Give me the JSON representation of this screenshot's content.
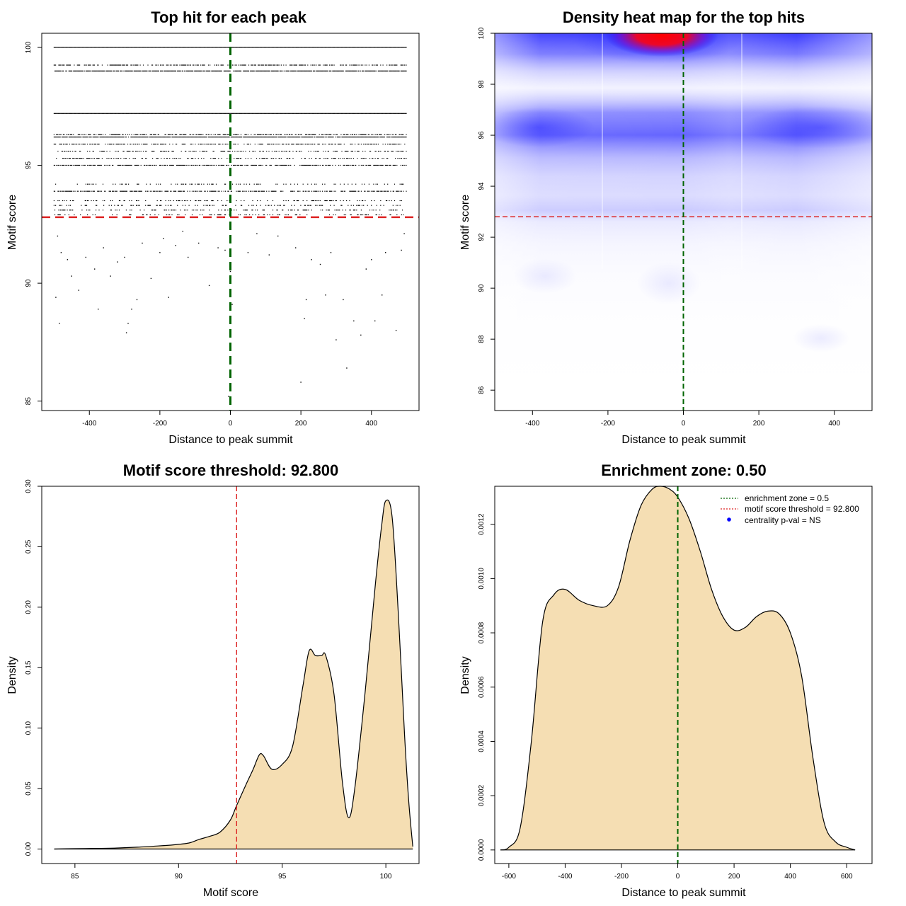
{
  "chart_data": [
    {
      "type": "scatter",
      "title": "Top hit for each peak",
      "xlabel": "Distance to peak summit",
      "ylabel": "Motif score",
      "xlim": [
        -535,
        535
      ],
      "ylim": [
        84.6,
        100.6
      ],
      "xticks": [
        -400,
        -200,
        0,
        200,
        400
      ],
      "yticks": [
        85,
        90,
        95,
        100
      ],
      "score_levels": [
        100,
        99.25,
        99.0,
        97.2,
        96.3,
        96.2,
        95.9,
        95.6,
        95.3,
        95.0,
        94.2,
        93.9,
        93.5,
        93.3,
        93.1,
        92.9
      ],
      "sparse_points": [
        [
          -490,
          92.0
        ],
        [
          -480,
          91.3
        ],
        [
          -462,
          91.0
        ],
        [
          -450,
          90.3
        ],
        [
          -430,
          89.7
        ],
        [
          -410,
          91.1
        ],
        [
          -385,
          90.6
        ],
        [
          -375,
          88.9
        ],
        [
          -360,
          91.5
        ],
        [
          -340,
          90.3
        ],
        [
          -320,
          90.9
        ],
        [
          -300,
          91.1
        ],
        [
          -290,
          88.3
        ],
        [
          -280,
          88.9
        ],
        [
          -265,
          89.3
        ],
        [
          -250,
          91.7
        ],
        [
          -225,
          90.2
        ],
        [
          -200,
          91.3
        ],
        [
          -190,
          91.9
        ],
        [
          -175,
          89.4
        ],
        [
          -155,
          91.6
        ],
        [
          -135,
          92.2
        ],
        [
          -120,
          91.1
        ],
        [
          -90,
          91.7
        ],
        [
          -60,
          89.9
        ],
        [
          -35,
          91.5
        ],
        [
          -15,
          91.4
        ],
        [
          -5,
          85.2
        ],
        [
          0,
          90.5
        ],
        [
          5,
          89.1
        ],
        [
          50,
          91.3
        ],
        [
          75,
          92.1
        ],
        [
          110,
          91.2
        ],
        [
          135,
          92.0
        ],
        [
          185,
          91.5
        ],
        [
          200,
          85.8
        ],
        [
          210,
          88.5
        ],
        [
          215,
          89.3
        ],
        [
          230,
          91.0
        ],
        [
          255,
          90.8
        ],
        [
          270,
          89.5
        ],
        [
          285,
          91.3
        ],
        [
          300,
          87.6
        ],
        [
          320,
          89.3
        ],
        [
          330,
          86.4
        ],
        [
          350,
          88.4
        ],
        [
          370,
          87.8
        ],
        [
          385,
          90.6
        ],
        [
          400,
          91.0
        ],
        [
          410,
          88.4
        ],
        [
          430,
          89.5
        ],
        [
          440,
          91.3
        ],
        [
          470,
          88.0
        ],
        [
          485,
          91.4
        ],
        [
          493,
          92.1
        ],
        [
          -485,
          88.3
        ],
        [
          -495,
          89.4
        ],
        [
          -295,
          87.9
        ]
      ],
      "threshold": 92.8
    },
    {
      "type": "heatmap",
      "title": "Density heat map for the top hits",
      "xlabel": "Distance to peak summit",
      "ylabel": "Motif score",
      "xlim": [
        -500,
        500
      ],
      "ylim": [
        85.2,
        100
      ],
      "xticks": [
        -400,
        -200,
        0,
        200,
        400
      ],
      "yticks": [
        86,
        88,
        90,
        92,
        94,
        96,
        98,
        100
      ],
      "color_scale": [
        "#ffffff",
        "#0000ff",
        "#ff0000"
      ],
      "threshold": 92.8
    },
    {
      "type": "area",
      "title": "Motif score threshold: 92.800",
      "xlabel": "Motif score",
      "ylabel": "Density",
      "xlim": [
        83.4,
        101.6
      ],
      "ylim": [
        -0.012,
        0.3
      ],
      "xticks": [
        85,
        90,
        95,
        100
      ],
      "yticks": [
        0.0,
        0.05,
        0.1,
        0.15,
        0.2,
        0.25,
        0.3
      ],
      "ytick_labels": [
        "0.00",
        "0.05",
        "0.10",
        "0.15",
        "0.20",
        "0.25",
        "0.30"
      ],
      "x": [
        84.0,
        85.0,
        86.0,
        87.0,
        88.0,
        89.0,
        89.8,
        90.5,
        91.0,
        91.5,
        92.0,
        92.5,
        92.8,
        93.3,
        93.6,
        93.9,
        94.1,
        94.5,
        95.0,
        95.5,
        96.0,
        96.3,
        96.6,
        96.9,
        97.1,
        97.5,
        97.9,
        98.2,
        98.5,
        99.0,
        99.5,
        99.8,
        100.0,
        100.3,
        100.6,
        100.9,
        101.1,
        101.3
      ],
      "y": [
        0.0,
        0.0003,
        0.0005,
        0.0008,
        0.0015,
        0.0025,
        0.0035,
        0.005,
        0.008,
        0.0105,
        0.014,
        0.024,
        0.036,
        0.055,
        0.066,
        0.078,
        0.077,
        0.066,
        0.07,
        0.085,
        0.135,
        0.164,
        0.16,
        0.16,
        0.16,
        0.128,
        0.056,
        0.026,
        0.05,
        0.13,
        0.22,
        0.268,
        0.288,
        0.275,
        0.195,
        0.095,
        0.04,
        0.002
      ],
      "threshold": 92.8
    },
    {
      "type": "area",
      "title": "Enrichment zone: 0.50",
      "xlabel": "Distance to peak summit",
      "ylabel": "Density",
      "xlim": [
        -650,
        690
      ],
      "ylim": [
        -5e-05,
        0.00134
      ],
      "xticks": [
        -600,
        -400,
        -200,
        0,
        200,
        400,
        600
      ],
      "yticks": [
        0.0,
        0.0002,
        0.0004,
        0.0006,
        0.0008,
        0.001,
        0.0012
      ],
      "ytick_labels": [
        "0.0000",
        "0.0002",
        "0.0004",
        "0.0006",
        "0.0008",
        "0.0010",
        "0.0012"
      ],
      "x": [
        -630,
        -600,
        -560,
        -520,
        -480,
        -440,
        -400,
        -350,
        -300,
        -250,
        -210,
        -170,
        -130,
        -90,
        -60,
        -30,
        0,
        40,
        80,
        120,
        160,
        200,
        240,
        280,
        320,
        360,
        400,
        440,
        480,
        520,
        560,
        600,
        630
      ],
      "y": [
        0.0,
        1e-05,
        8e-05,
        0.0004,
        0.00084,
        0.00094,
        0.00096,
        0.00092,
        0.0009,
        0.0009,
        0.00097,
        0.00114,
        0.00127,
        0.00133,
        0.00134,
        0.00133,
        0.0013,
        0.00122,
        0.0011,
        0.00096,
        0.00086,
        0.00081,
        0.00082,
        0.00086,
        0.00088,
        0.00087,
        0.0008,
        0.00064,
        0.00034,
        0.0001,
        3e-05,
        1e-05,
        0.0
      ],
      "legend": {
        "placement": "top-right",
        "entries": [
          "enrichment zone = 0.5",
          "motif score threshold = 92.800",
          "centrality p-val = NS"
        ]
      }
    }
  ],
  "colors": {
    "green": "#006400",
    "red": "#dd2222",
    "fill": "#f5deb3",
    "blue": "#0000ff"
  }
}
